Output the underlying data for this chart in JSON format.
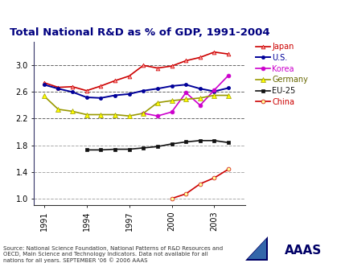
{
  "title": "Total National R&D as % of GDP, 1991-2004",
  "years": [
    1991,
    1992,
    1993,
    1994,
    1995,
    1996,
    1997,
    1998,
    1999,
    2000,
    2001,
    2002,
    2003,
    2004
  ],
  "series_order": [
    "Japan",
    "U.S.",
    "Korea",
    "Germany",
    "EU-25",
    "China"
  ],
  "series": {
    "Japan": {
      "values": [
        2.74,
        2.67,
        2.68,
        2.62,
        2.69,
        2.77,
        2.84,
        3.0,
        2.96,
        2.99,
        3.07,
        3.12,
        3.2,
        3.17
      ],
      "color": "#cc0000",
      "marker": "^",
      "markersize": 3.5,
      "linewidth": 1.2,
      "mfc": "#ff9999"
    },
    "U.S.": {
      "values": [
        2.71,
        2.65,
        2.6,
        2.52,
        2.51,
        2.55,
        2.57,
        2.62,
        2.65,
        2.69,
        2.71,
        2.65,
        2.61,
        2.66
      ],
      "color": "#000099",
      "marker": "o",
      "markersize": 3,
      "linewidth": 1.4,
      "mfc": "#000099"
    },
    "Korea": {
      "values": [
        null,
        null,
        null,
        null,
        null,
        null,
        null,
        2.28,
        2.24,
        2.3,
        2.59,
        2.4,
        2.63,
        2.85
      ],
      "color": "#cc00cc",
      "marker": "o",
      "markersize": 3.5,
      "linewidth": 1.2,
      "mfc": "#cc00cc"
    },
    "Germany": {
      "values": [
        2.54,
        2.34,
        2.31,
        2.26,
        2.26,
        2.26,
        2.24,
        2.28,
        2.44,
        2.47,
        2.49,
        2.51,
        2.55,
        2.55
      ],
      "color": "#999900",
      "marker": "^",
      "markersize": 4.5,
      "linewidth": 1.2,
      "mfc": "#ffff00"
    },
    "EU-25": {
      "values": [
        null,
        null,
        null,
        1.73,
        1.73,
        1.74,
        1.74,
        1.76,
        1.78,
        1.82,
        1.85,
        1.87,
        1.87,
        1.84
      ],
      "color": "#111111",
      "marker": "s",
      "markersize": 3.5,
      "linewidth": 1.2,
      "mfc": "#111111"
    },
    "China": {
      "values": [
        null,
        null,
        null,
        null,
        null,
        null,
        null,
        null,
        null,
        1.0,
        1.07,
        1.22,
        1.31,
        1.44
      ],
      "color": "#cc0000",
      "marker": "o",
      "markersize": 3.5,
      "linewidth": 1.2,
      "mfc": "#ffff99"
    }
  },
  "ylim": [
    0.9,
    3.35
  ],
  "yticks": [
    1.0,
    1.4,
    1.8,
    2.2,
    2.6,
    3.0
  ],
  "ytick_labels": [
    "1.0",
    "1.4",
    "1.8",
    "2.2",
    "2.6",
    "3.0"
  ],
  "xticks": [
    1991,
    1994,
    1997,
    2000,
    2003
  ],
  "xlim": [
    1990.3,
    2005.2
  ],
  "source_text": "Source: National Science Foundation, National Patterns of R&D Resources and\nOECD, Main Science and Technology Indicators. Data not available for all\nnations for all years. SEPTEMBER '06 © 2006 AAAS",
  "background_color": "#ffffff",
  "title_color": "#000080",
  "title_fontsize": 9.5
}
